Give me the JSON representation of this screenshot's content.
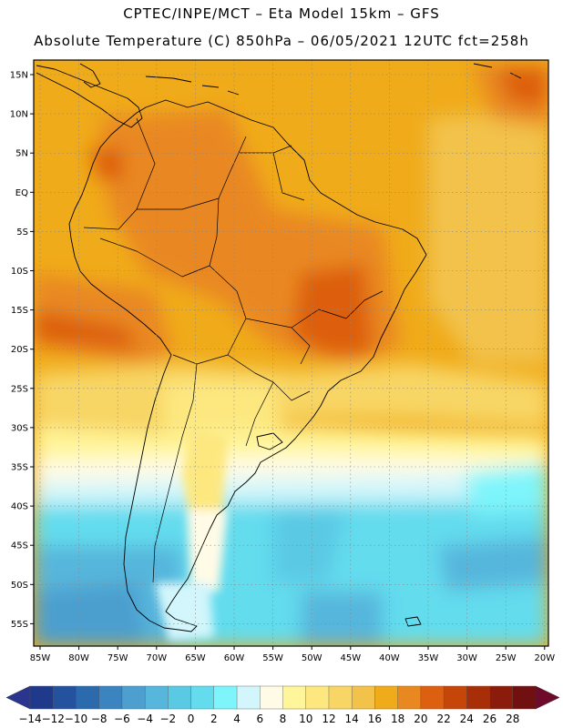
{
  "title": {
    "line1": "CPTEC/INPE/MCT –  Eta Model 15km – GFS",
    "line2": "Absolute Temperature (C) 850hPa – 06/05/2021 12UTC fct=258h"
  },
  "axes": {
    "lat_labels": [
      "15N",
      "10N",
      "5N",
      "EQ",
      "5S",
      "10S",
      "15S",
      "20S",
      "25S",
      "30S",
      "35S",
      "40S",
      "45S",
      "50S",
      "55S"
    ],
    "lon_labels": [
      "85W",
      "80W",
      "75W",
      "70W",
      "65W",
      "60W",
      "55W",
      "50W",
      "45W",
      "40W",
      "35W",
      "30W",
      "25W",
      "20W"
    ]
  },
  "colorbar": {
    "labels": [
      "-14",
      "-12",
      "-10",
      "-8",
      "-6",
      "-4",
      "-2",
      "0",
      "2",
      "4",
      "6",
      "8",
      "10",
      "12",
      "14",
      "16",
      "18",
      "20",
      "22",
      "24",
      "26",
      "28"
    ],
    "colors": [
      "#1f3a8a",
      "#24529e",
      "#2a6aad",
      "#3b84bf",
      "#4c9fcf",
      "#56b6dc",
      "#5ac9e4",
      "#64dcee",
      "#7ef5fb",
      "#d2f6fb",
      "#fffbe6",
      "#fff59a",
      "#fde880",
      "#f8d665",
      "#f2c24b",
      "#f0ab1a",
      "#e98820",
      "#dd5f10",
      "#c54608",
      "#a82e08",
      "#8b1c0c",
      "#701010"
    ],
    "left_arrow_color": "#2a3590",
    "right_arrow_color": "#700a2a"
  },
  "colors": {
    "land_outline": "#000000",
    "grid": "#888888"
  }
}
